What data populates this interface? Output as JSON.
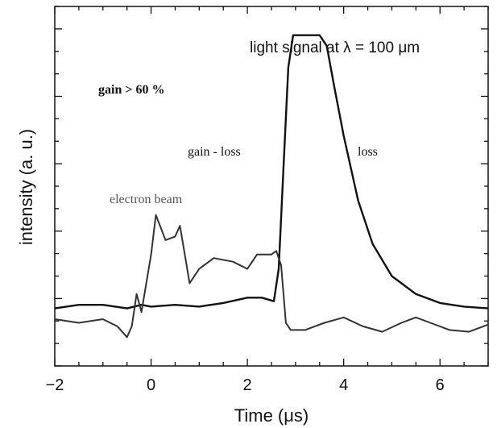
{
  "chart_data": {
    "type": "line",
    "xlabel": "Time (μs)",
    "ylabel": "intensity (a. u.)",
    "xlim": [
      -2,
      7
    ],
    "ylim": [
      0,
      1
    ],
    "x_ticks": [
      -2,
      0,
      2,
      4,
      6
    ],
    "x_tick_labels": [
      "−2",
      "0",
      "2",
      "4",
      "6"
    ],
    "y_tick_labels_shown": false,
    "grid": false,
    "legend": "none",
    "series": [
      {
        "color": "#111111",
        "points": [
          [
            -2.0,
            0.16
          ],
          [
            -1.5,
            0.17
          ],
          [
            -1.0,
            0.17
          ],
          [
            -0.5,
            0.16
          ],
          [
            -0.2,
            0.17
          ],
          [
            0.0,
            0.165
          ],
          [
            0.5,
            0.17
          ],
          [
            1.0,
            0.165
          ],
          [
            1.5,
            0.175
          ],
          [
            2.0,
            0.19
          ],
          [
            2.3,
            0.19
          ],
          [
            2.55,
            0.18
          ],
          [
            2.65,
            0.27
          ],
          [
            2.75,
            0.55
          ],
          [
            2.85,
            0.83
          ],
          [
            2.95,
            0.92
          ],
          [
            3.2,
            0.92
          ],
          [
            3.5,
            0.92
          ],
          [
            3.65,
            0.89
          ],
          [
            3.8,
            0.78
          ],
          [
            4.0,
            0.64
          ],
          [
            4.3,
            0.46
          ],
          [
            4.6,
            0.34
          ],
          [
            5.0,
            0.25
          ],
          [
            5.5,
            0.2
          ],
          [
            6.0,
            0.175
          ],
          [
            6.5,
            0.165
          ],
          [
            7.0,
            0.16
          ]
        ]
      },
      {
        "color": "#333333",
        "points": [
          [
            -2.0,
            0.13
          ],
          [
            -1.5,
            0.12
          ],
          [
            -1.0,
            0.13
          ],
          [
            -0.7,
            0.11
          ],
          [
            -0.5,
            0.08
          ],
          [
            -0.4,
            0.11
          ],
          [
            -0.3,
            0.2
          ],
          [
            -0.2,
            0.15
          ],
          [
            -0.1,
            0.23
          ],
          [
            0.0,
            0.31
          ],
          [
            0.1,
            0.42
          ],
          [
            0.3,
            0.35
          ],
          [
            0.5,
            0.36
          ],
          [
            0.6,
            0.39
          ],
          [
            0.7,
            0.31
          ],
          [
            0.8,
            0.23
          ],
          [
            1.0,
            0.27
          ],
          [
            1.3,
            0.3
          ],
          [
            1.7,
            0.29
          ],
          [
            2.0,
            0.27
          ],
          [
            2.2,
            0.31
          ],
          [
            2.5,
            0.31
          ],
          [
            2.6,
            0.32
          ],
          [
            2.7,
            0.28
          ],
          [
            2.8,
            0.12
          ],
          [
            2.9,
            0.1
          ],
          [
            3.2,
            0.1
          ],
          [
            3.6,
            0.12
          ],
          [
            4.0,
            0.135
          ],
          [
            4.4,
            0.11
          ],
          [
            4.8,
            0.095
          ],
          [
            5.2,
            0.12
          ],
          [
            5.5,
            0.135
          ],
          [
            5.8,
            0.12
          ],
          [
            6.2,
            0.1
          ],
          [
            6.6,
            0.095
          ],
          [
            7.0,
            0.115
          ]
        ]
      }
    ],
    "annotations": {
      "title": "light signal at λ = 100 μm",
      "gain": "gain > 60 %",
      "gain_loss": "gain - loss",
      "loss": "loss",
      "electron_beam": "electron beam"
    }
  }
}
